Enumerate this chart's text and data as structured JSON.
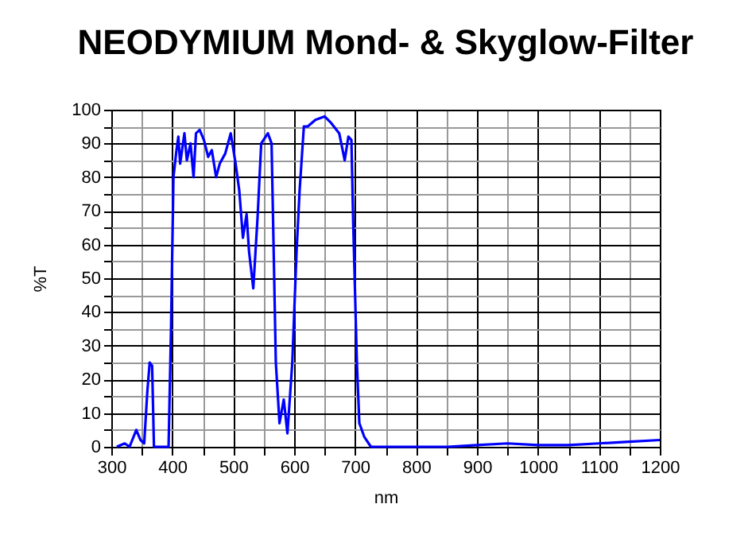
{
  "chart_data": {
    "type": "line",
    "title": "NEODYMIUM Mond- & Skyglow-Filter",
    "xlabel": "nm",
    "ylabel": "%T",
    "xlim": [
      300,
      1200
    ],
    "xticks": [
      300,
      {
        "value": 350,
        "label": null
      },
      400,
      {
        "value": 450,
        "label": null
      },
      500,
      {
        "value": 550,
        "label": null
      },
      600,
      {
        "value": 650,
        "label": null
      },
      700,
      {
        "value": 750,
        "label": null
      },
      800,
      {
        "value": 850,
        "label": null
      },
      900,
      {
        "value": 950,
        "label": null
      },
      1000,
      {
        "value": 1050,
        "label": null
      },
      1100,
      {
        "value": 1150,
        "label": null
      },
      1200
    ],
    "ylim": [
      0,
      100
    ],
    "yticks": [
      0,
      {
        "value": 5,
        "label": null
      },
      10,
      {
        "value": 15,
        "label": null
      },
      20,
      {
        "value": 25,
        "label": null
      },
      30,
      {
        "value": 35,
        "label": null
      },
      40,
      {
        "value": 45,
        "label": null
      },
      50,
      {
        "value": 55,
        "label": null
      },
      60,
      {
        "value": 65,
        "label": null
      },
      70,
      {
        "value": 75,
        "label": null
      },
      80,
      {
        "value": 85,
        "label": null
      },
      90,
      {
        "value": 95,
        "label": null
      },
      100
    ],
    "grid": true,
    "marker": "none",
    "line_style": "solid",
    "x": [
      309,
      322,
      330,
      341,
      348,
      354,
      359,
      363,
      367,
      370,
      394,
      398,
      402,
      407,
      410,
      413,
      420,
      424,
      430,
      435,
      439,
      445,
      452,
      459,
      465,
      472,
      478,
      487,
      496,
      504,
      510,
      516,
      522,
      526,
      533,
      540,
      546,
      557,
      563,
      570,
      576,
      583,
      589,
      597,
      604,
      609,
      616,
      622,
      635,
      650,
      661,
      674,
      683,
      689,
      694,
      697,
      703,
      707,
      715,
      726,
      852,
      900,
      950,
      1000,
      1050,
      1100,
      1150,
      1200
    ],
    "series": [
      {
        "color": "#0000ff",
        "values": [
          0,
          1,
          0,
          5,
          2,
          1,
          16,
          25,
          24,
          0,
          0,
          35,
          80,
          88,
          92,
          84,
          93,
          85,
          90,
          80,
          93,
          94,
          91,
          86,
          88,
          80,
          84,
          87,
          93,
          84,
          76,
          62,
          69,
          58,
          47,
          68,
          90,
          93,
          90,
          25,
          7,
          14,
          4,
          25,
          58,
          76,
          95,
          95,
          97,
          98,
          96,
          93,
          85,
          92,
          91,
          66,
          25,
          7,
          3,
          0,
          0,
          0.5,
          1,
          0.5,
          0.5,
          1,
          1.5,
          2
        ]
      }
    ]
  }
}
